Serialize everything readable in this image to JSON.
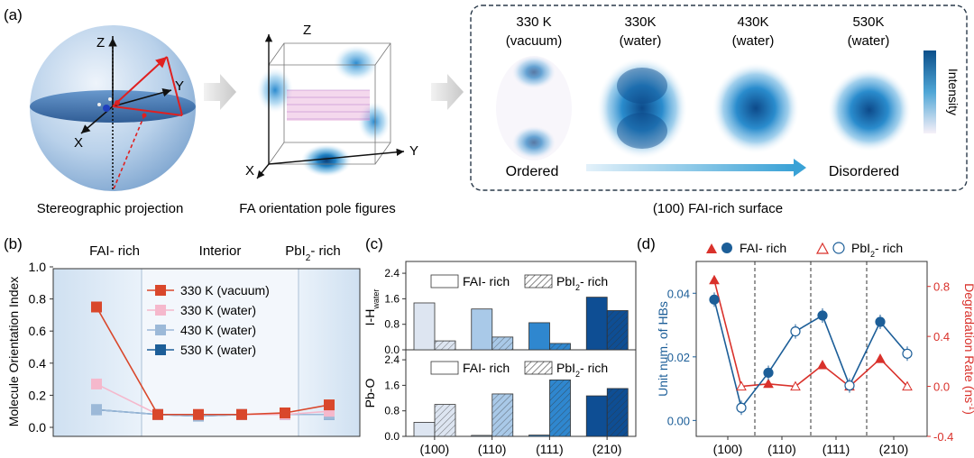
{
  "panel_labels": {
    "a": "(a)",
    "b": "(b)",
    "c": "(c)",
    "d": "(d)"
  },
  "panel_a": {
    "caption_stereo": "Stereographic projection",
    "caption_pole": "FA orientation pole figures",
    "caption_surface": "(100) FAI-rich surface",
    "axis_x": "X",
    "axis_y": "Y",
    "axis_z": "Z",
    "conditions": [
      {
        "temp": "330 K",
        "env": "(vacuum)"
      },
      {
        "temp": "330K",
        "env": "(water)"
      },
      {
        "temp": "430K",
        "env": "(water)"
      },
      {
        "temp": "530K",
        "env": "(water)"
      }
    ],
    "ordered_label": "Ordered",
    "disordered_label": "Disordered",
    "intensity_label": "Intensity"
  },
  "chart_data": [
    {
      "panel": "b",
      "type": "line",
      "ylabel": "Molecule Orientation Index",
      "ylim": [
        0,
        1.0
      ],
      "yticks": [
        "0.0",
        "0.2",
        "0.4",
        "0.6",
        "0.8",
        "1.0"
      ],
      "regions": [
        "FAI- rich",
        "Interior",
        "PbI2- rich"
      ],
      "x": [
        1,
        2,
        3,
        4,
        5,
        6
      ],
      "series": [
        {
          "name": "330 K (vacuum)",
          "color": "#d9472b",
          "values": [
            0.75,
            0.08,
            0.08,
            0.08,
            0.09,
            0.14
          ]
        },
        {
          "name": "330 K (water)",
          "color": "#f5b8cc",
          "values": [
            0.27,
            0.08,
            0.08,
            0.08,
            0.08,
            0.1
          ]
        },
        {
          "name": "430 K (water)",
          "color": "#9cb9d8",
          "values": [
            0.11,
            0.08,
            0.07,
            0.08,
            0.08,
            0.08
          ]
        },
        {
          "name": "530 K (water)",
          "color": "#1c5e98",
          "values": [
            0.11,
            0.08,
            0.07,
            0.08,
            0.08,
            0.08
          ]
        }
      ]
    },
    {
      "panel": "c",
      "type": "bar",
      "categories": [
        "(100)",
        "(110)",
        "(111)",
        "(210)"
      ],
      "legend": [
        "FAI- rich",
        "PbI2- rich"
      ],
      "top": {
        "ylabel": "I-H",
        "ylabel_sub": "water",
        "yticks": [
          "0.0",
          "0.8",
          "1.6",
          "2.4"
        ],
        "ylim": [
          0,
          2.6
        ],
        "fai": [
          1.47,
          1.28,
          0.85,
          1.65
        ],
        "pbi": [
          0.28,
          0.4,
          0.2,
          1.23
        ]
      },
      "bottom": {
        "ylabel": "Pb-O",
        "yticks": [
          "0.0",
          "0.8",
          "1.6",
          "2.4"
        ],
        "ylim": [
          0,
          2.6
        ],
        "fai": [
          0.44,
          0.03,
          0.04,
          1.27
        ],
        "pbi": [
          1.0,
          1.33,
          1.77,
          1.5
        ]
      },
      "colors": [
        "#dde5f1",
        "#a9c9e8",
        "#2f87cf",
        "#0e4e94"
      ]
    },
    {
      "panel": "d",
      "type": "scatter",
      "categories": [
        "(100)",
        "(110)",
        "(111)",
        "(210)"
      ],
      "legend": [
        "FAI- rich",
        "PbI2- rich"
      ],
      "ylabel_left": "Unit num. of HBs",
      "ylabel_right": "Degradation Rate (ns",
      "ylabel_right_sup": "-1",
      "ylabel_right_tail": ")",
      "left_ylim": [
        -0.005,
        0.05
      ],
      "left_yticks": [
        "0.00",
        "0.02",
        "0.04"
      ],
      "right_ylim": [
        -0.4,
        1.0
      ],
      "right_yticks": [
        "-0.4",
        "0.0",
        "0.4",
        "0.8"
      ],
      "x": [
        1,
        2,
        3,
        4,
        5,
        6,
        7,
        8
      ],
      "hbs_fai": [
        0.038,
        0.015,
        0.033,
        0.031
      ],
      "hbs_pbi": [
        0.004,
        0.028,
        0.011,
        0.021
      ],
      "deg_fai": [
        0.85,
        0.02,
        0.17,
        0.22
      ],
      "deg_pbi": [
        0.0,
        0.0,
        0.0,
        0.0
      ]
    }
  ]
}
